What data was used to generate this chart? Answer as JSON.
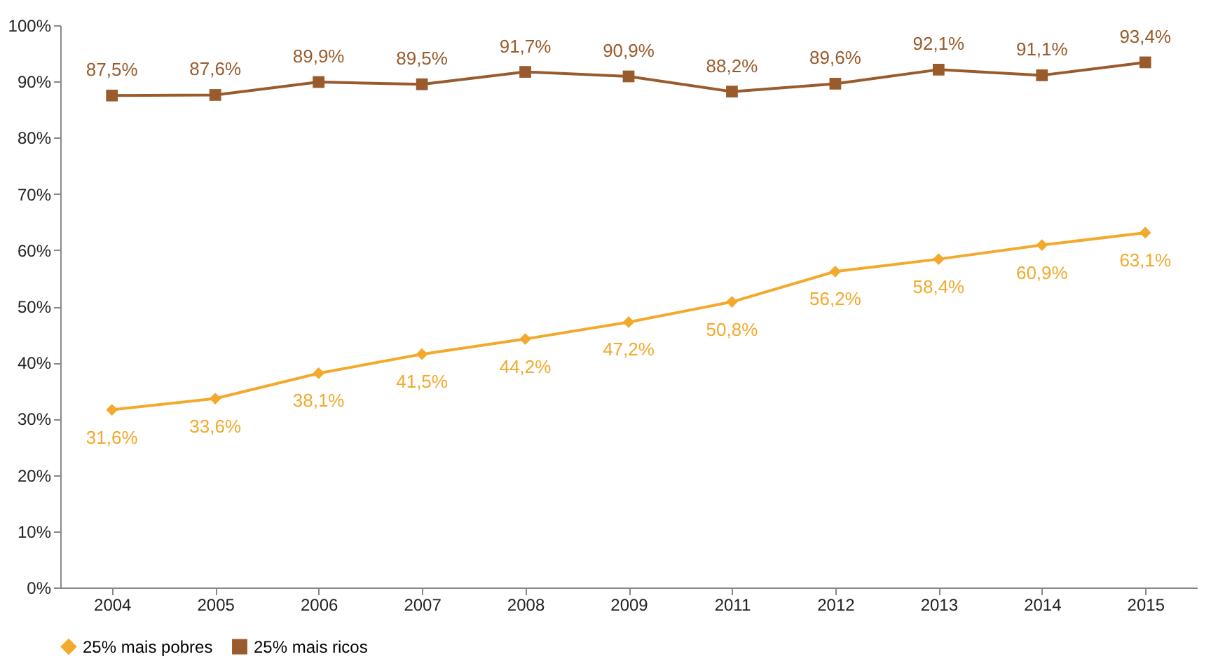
{
  "chart_data": {
    "type": "line",
    "categories": [
      "2004",
      "2005",
      "2006",
      "2007",
      "2008",
      "2009",
      "2011",
      "2012",
      "2013",
      "2014",
      "2015"
    ],
    "series": [
      {
        "name": "25% mais pobres",
        "color": "#f2a92c",
        "marker": "diamond",
        "values": [
          31.6,
          33.6,
          38.1,
          41.5,
          44.2,
          47.2,
          50.8,
          56.2,
          58.4,
          60.9,
          63.1
        ],
        "value_labels": [
          "31,6%",
          "33,6%",
          "38,1%",
          "41,5%",
          "44,2%",
          "47,2%",
          "50,8%",
          "56,2%",
          "58,4%",
          "60,9%",
          "63,1%"
        ]
      },
      {
        "name": "25% mais ricos",
        "color": "#9a5b2c",
        "marker": "square",
        "values": [
          87.5,
          87.6,
          89.9,
          89.5,
          91.7,
          90.9,
          88.2,
          89.6,
          92.1,
          91.1,
          93.4
        ],
        "value_labels": [
          "87,5%",
          "87,6%",
          "89,9%",
          "89,5%",
          "91,7%",
          "90,9%",
          "88,2%",
          "89,6%",
          "92,1%",
          "91,1%",
          "93,4%"
        ]
      }
    ],
    "ylim": [
      0,
      100
    ],
    "yticks": [
      {
        "value": 0,
        "label": "0%"
      },
      {
        "value": 10,
        "label": "10%"
      },
      {
        "value": 20,
        "label": "20%"
      },
      {
        "value": 30,
        "label": "30%"
      },
      {
        "value": 40,
        "label": "40%"
      },
      {
        "value": 50,
        "label": "50%"
      },
      {
        "value": 60,
        "label": "60%"
      },
      {
        "value": 70,
        "label": "70%"
      },
      {
        "value": 80,
        "label": "80%"
      },
      {
        "value": 90,
        "label": "90%"
      },
      {
        "value": 100,
        "label": "100%"
      }
    ],
    "grid": false,
    "legend": "bottom",
    "line_style": "solid"
  }
}
